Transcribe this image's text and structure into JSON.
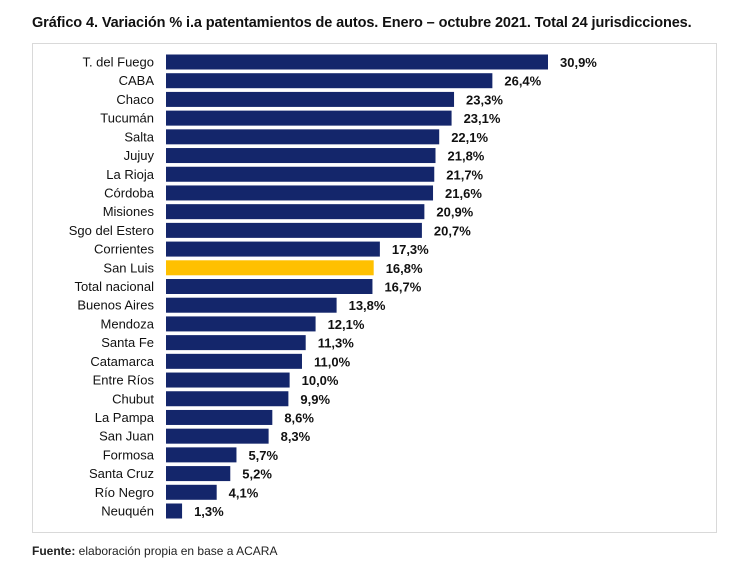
{
  "title": "Gráfico 4. Variación % i.a patentamientos de autos. Enero – octubre 2021. Total 24 jurisdicciones.",
  "source": {
    "label": "Fuente:",
    "text": " elaboración propia en base a ACARA"
  },
  "colors": {
    "bar": "#14266b",
    "highlight": "#ffc000"
  },
  "chart_data": {
    "type": "bar",
    "orientation": "horizontal",
    "title": "Gráfico 4. Variación % i.a patentamientos de autos. Enero – octubre 2021. Total 24 jurisdicciones.",
    "categories": [
      "T. del Fuego",
      "CABA",
      "Chaco",
      "Tucumán",
      "Salta",
      "Jujuy",
      "La Rioja",
      "Córdoba",
      "Misiones",
      "Sgo del Estero",
      "Corrientes",
      "San Luis",
      "Total nacional",
      "Buenos Aires",
      "Mendoza",
      "Santa Fe",
      "Catamarca",
      "Entre Ríos",
      "Chubut",
      "La Pampa",
      "San Juan",
      "Formosa",
      "Santa Cruz",
      "Río Negro",
      "Neuquén"
    ],
    "values": [
      30.9,
      26.4,
      23.3,
      23.1,
      22.1,
      21.8,
      21.7,
      21.6,
      20.9,
      20.7,
      17.3,
      16.8,
      16.7,
      13.8,
      12.1,
      11.3,
      11.0,
      10.0,
      9.9,
      8.6,
      8.3,
      5.7,
      5.2,
      4.1,
      1.3
    ],
    "data_labels": [
      "30,9%",
      "26,4%",
      "23,3%",
      "23,1%",
      "22,1%",
      "21,8%",
      "21,7%",
      "21,6%",
      "20,9%",
      "20,7%",
      "17,3%",
      "16,8%",
      "16,7%",
      "13,8%",
      "12,1%",
      "11,3%",
      "11,0%",
      "10,0%",
      "9,9%",
      "8,6%",
      "8,3%",
      "5,7%",
      "5,2%",
      "4,1%",
      "1,3%"
    ],
    "highlighted_category": "San Luis",
    "xlabel": "",
    "ylabel": "",
    "grid": false,
    "legend": "none"
  }
}
